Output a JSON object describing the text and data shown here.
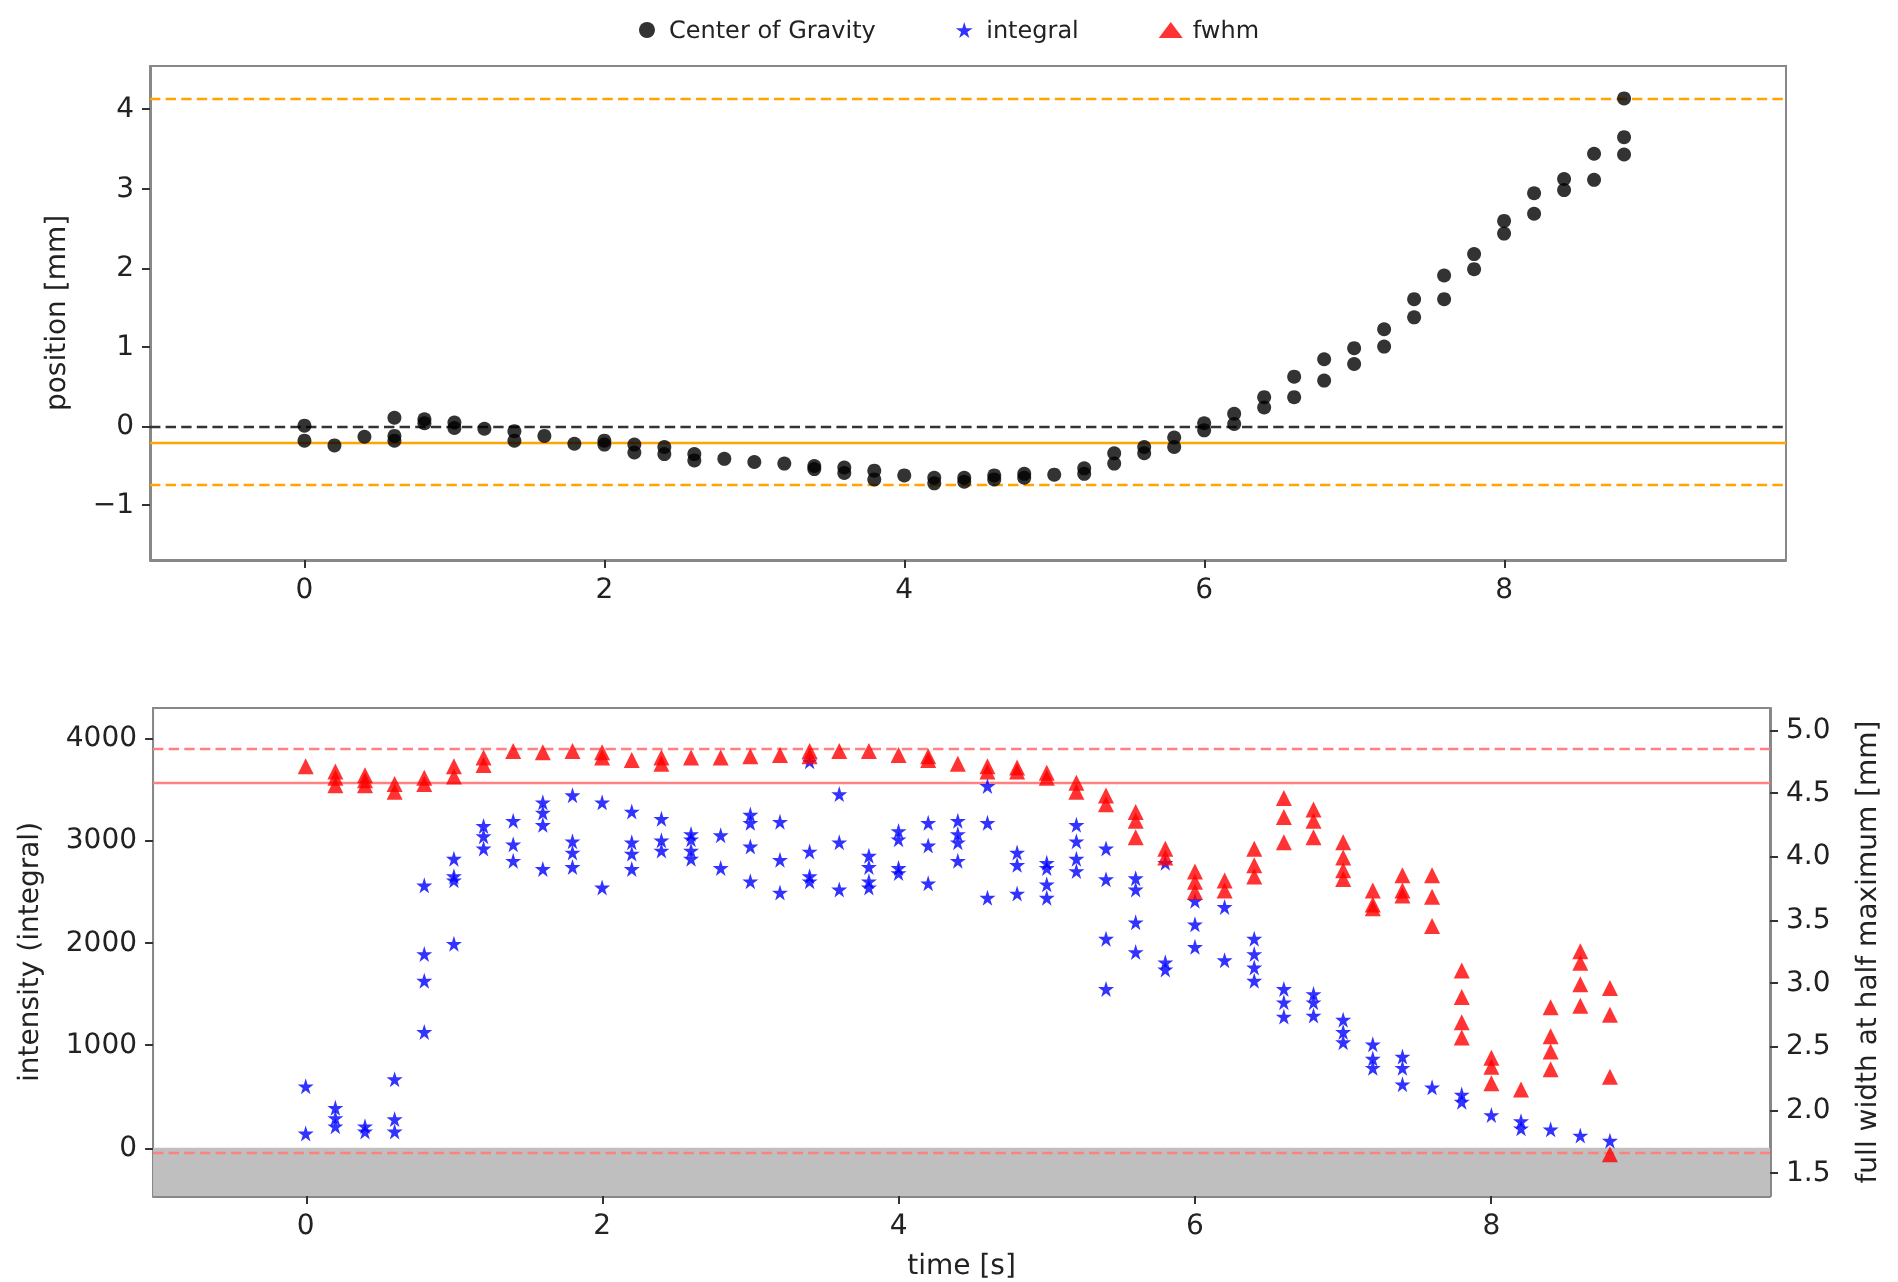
{
  "chart_data": [
    {
      "type": "scatter",
      "ylabel": "position [mm]",
      "xlim": [
        -1.03,
        9.88
      ],
      "xticks": [
        0,
        2,
        4,
        6,
        8
      ],
      "ylim": [
        -1.7,
        4.55
      ],
      "yticks": [
        {
          "value": -1,
          "label": "−1"
        },
        0,
        1,
        2,
        3,
        4
      ],
      "legend": "top",
      "series": [
        {
          "name": "Center of Gravity",
          "color": "#000000",
          "marker": "circle",
          "x": [
            0,
            0,
            0.2,
            0.4,
            0.6,
            0.6,
            0.6,
            0.8,
            0.8,
            1,
            1,
            1.2,
            1.4,
            1.4,
            1.6,
            1.8,
            2,
            2,
            2.2,
            2.2,
            2.4,
            2.4,
            2.6,
            2.6,
            2.8,
            3,
            3.2,
            3.4,
            3.4,
            3.6,
            3.6,
            3.8,
            3.8,
            4,
            4.2,
            4.2,
            4.4,
            4.4,
            4.6,
            4.6,
            4.8,
            4.8,
            5,
            5.2,
            5.2,
            5.4,
            5.4,
            5.6,
            5.6,
            5.8,
            5.8,
            6,
            6,
            6.2,
            6.2,
            6.4,
            6.4,
            6.6,
            6.6,
            6.8,
            6.8,
            7,
            7,
            7.2,
            7.2,
            7.4,
            7.4,
            7.6,
            7.6,
            7.8,
            7.8,
            8,
            8,
            8.2,
            8.2,
            8.4,
            8.4,
            8.6,
            8.6,
            8.8,
            8.8,
            8.8
          ],
          "values": [
            0,
            -0.19,
            -0.25,
            -0.14,
            0.1,
            -0.13,
            -0.19,
            0.08,
            0.03,
            0.04,
            -0.03,
            -0.04,
            -0.07,
            -0.19,
            -0.13,
            -0.23,
            -0.19,
            -0.24,
            -0.24,
            -0.34,
            -0.27,
            -0.36,
            -0.36,
            -0.44,
            -0.42,
            -0.46,
            -0.48,
            -0.51,
            -0.55,
            -0.53,
            -0.6,
            -0.57,
            -0.68,
            -0.63,
            -0.66,
            -0.73,
            -0.66,
            -0.71,
            -0.63,
            -0.68,
            -0.61,
            -0.66,
            -0.62,
            -0.54,
            -0.61,
            -0.35,
            -0.48,
            -0.27,
            -0.35,
            -0.15,
            -0.27,
            0.03,
            -0.06,
            0.15,
            0.02,
            0.36,
            0.23,
            0.62,
            0.36,
            0.84,
            0.57,
            0.98,
            0.78,
            1.22,
            1,
            1.6,
            1.37,
            1.9,
            1.6,
            2.17,
            1.98,
            2.59,
            2.43,
            2.94,
            2.68,
            3.12,
            2.98,
            3.44,
            3.11,
            4.14,
            3.65,
            3.43
          ]
        }
      ],
      "ref_lines": [
        {
          "axis": "y",
          "value": 0,
          "color": "#333333",
          "line_style": "dashed"
        },
        {
          "axis": "y",
          "value": -0.21,
          "color": "#ffa500",
          "line_style": "solid"
        },
        {
          "axis": "y",
          "value": 4.13,
          "color": "#ffa500",
          "line_style": "dashed"
        },
        {
          "axis": "y",
          "value": -0.74,
          "color": "#ffa500",
          "line_style": "dashed"
        }
      ]
    },
    {
      "type": "scatter",
      "xlabel": "time [s]",
      "ylabel": "intensity (integral)",
      "y2label": "full width at half maximum [mm]",
      "xlim": [
        -1.03,
        9.88
      ],
      "xticks": [
        0,
        2,
        4,
        6,
        8
      ],
      "ylim": [
        -470,
        4290
      ],
      "yticks": [
        0,
        1000,
        2000,
        3000,
        4000
      ],
      "y2lim": [
        1.32,
        5.17
      ],
      "y2ticks": [
        1.5,
        {
          "value": 2,
          "label": "2.0"
        },
        2.5,
        {
          "value": 3,
          "label": "3.0"
        },
        3.5,
        {
          "value": 4,
          "label": "4.0"
        },
        4.5,
        {
          "value": 5,
          "label": "5.0"
        }
      ],
      "legend": "top",
      "series": [
        {
          "name": "integral",
          "color": "#0000ff",
          "marker": "star",
          "x": [
            0,
            0,
            0.2,
            0.2,
            0.2,
            0.4,
            0.4,
            0.6,
            0.6,
            0.6,
            0.8,
            0.8,
            0.8,
            0.8,
            1,
            1,
            1,
            1,
            1.2,
            1.2,
            1.2,
            1.4,
            1.4,
            1.4,
            1.6,
            1.6,
            1.6,
            1.6,
            1.8,
            1.8,
            1.8,
            1.8,
            2,
            2,
            2.2,
            2.2,
            2.2,
            2.2,
            2.4,
            2.4,
            2.4,
            2.6,
            2.6,
            2.6,
            2.6,
            2.8,
            2.8,
            3,
            3,
            3,
            3,
            3.2,
            3.2,
            3.2,
            3.4,
            3.4,
            3.4,
            3.4,
            3.6,
            3.6,
            3.6,
            3.8,
            3.8,
            3.8,
            3.8,
            4,
            4,
            4,
            4,
            4.2,
            4.2,
            4.2,
            4.4,
            4.4,
            4.4,
            4.4,
            4.6,
            4.6,
            4.6,
            4.8,
            4.8,
            4.8,
            5,
            5,
            5,
            5,
            5.2,
            5.2,
            5.2,
            5.2,
            5.4,
            5.4,
            5.4,
            5.4,
            5.6,
            5.6,
            5.6,
            5.6,
            5.8,
            5.8,
            5.8,
            6,
            6,
            6,
            6.2,
            6.2,
            6.4,
            6.4,
            6.4,
            6.4,
            6.6,
            6.6,
            6.6,
            6.8,
            6.8,
            6.8,
            7,
            7,
            7,
            7.2,
            7.2,
            7.2,
            7.4,
            7.4,
            7.4,
            7.6,
            7.8,
            7.8,
            8,
            8.2,
            8.2,
            8.4,
            8.6,
            8.8
          ],
          "values": [
            600,
            140,
            390,
            290,
            210,
            210,
            160,
            670,
            280,
            160,
            2560,
            1890,
            1630,
            1130,
            2820,
            2650,
            2610,
            1990,
            3140,
            3040,
            2920,
            3190,
            2960,
            2800,
            3370,
            3270,
            3150,
            2720,
            3440,
            2990,
            2880,
            2740,
            3370,
            2540,
            3280,
            2980,
            2870,
            2720,
            3210,
            3000,
            2900,
            3060,
            3010,
            2900,
            2820,
            3050,
            2730,
            3250,
            3170,
            2940,
            2600,
            3180,
            2810,
            2490,
            3770,
            2890,
            2650,
            2600,
            3450,
            2980,
            2520,
            2850,
            2740,
            2600,
            2540,
            3090,
            3010,
            2730,
            2680,
            3170,
            2950,
            2580,
            3190,
            3060,
            2980,
            2800,
            3530,
            3170,
            2440,
            2880,
            2760,
            2480,
            2780,
            2730,
            2570,
            2440,
            3150,
            2990,
            2820,
            2700,
            2920,
            2620,
            2040,
            1550,
            2630,
            2520,
            2200,
            1910,
            2780,
            1810,
            1740,
            2410,
            2180,
            1960,
            2350,
            1830,
            2040,
            1890,
            1760,
            1630,
            1550,
            1420,
            1280,
            1500,
            1420,
            1290,
            1250,
            1130,
            1030,
            1010,
            870,
            780,
            890,
            780,
            620,
            590,
            520,
            450,
            320,
            260,
            190,
            180,
            120,
            70
          ]
        },
        {
          "name": "fwhm",
          "color": "#ff0000",
          "marker": "triangle",
          "axis": "y2",
          "x": [
            0,
            0.2,
            0.2,
            0.2,
            0.4,
            0.4,
            0.4,
            0.6,
            0.6,
            0.8,
            0.8,
            1,
            1,
            1.2,
            1.2,
            1.4,
            1.6,
            1.8,
            2,
            2,
            2.2,
            2.4,
            2.4,
            2.6,
            2.8,
            3,
            3.2,
            3.4,
            3.4,
            3.6,
            3.8,
            4,
            4.2,
            4.2,
            4.4,
            4.6,
            4.6,
            4.8,
            4.8,
            5,
            5,
            5.2,
            5.2,
            5.4,
            5.4,
            5.6,
            5.6,
            5.6,
            5.8,
            5.8,
            6,
            6,
            6,
            6.2,
            6.2,
            6.4,
            6.4,
            6.4,
            6.6,
            6.6,
            6.6,
            6.8,
            6.8,
            6.8,
            7,
            7,
            7,
            7,
            7.2,
            7.2,
            7.2,
            7.4,
            7.4,
            7.4,
            7.6,
            7.6,
            7.6,
            7.8,
            7.8,
            7.8,
            7.8,
            8,
            8,
            8,
            8.2,
            8.4,
            8.4,
            8.4,
            8.4,
            8.6,
            8.6,
            8.6,
            8.6,
            8.8,
            8.8,
            8.8,
            8.8
          ],
          "values": [
            4.71,
            4.67,
            4.62,
            4.56,
            4.64,
            4.6,
            4.56,
            4.57,
            4.51,
            4.62,
            4.57,
            4.71,
            4.63,
            4.78,
            4.72,
            4.83,
            4.82,
            4.83,
            4.82,
            4.78,
            4.76,
            4.78,
            4.73,
            4.78,
            4.78,
            4.79,
            4.8,
            4.83,
            4.79,
            4.83,
            4.83,
            4.8,
            4.79,
            4.76,
            4.73,
            4.71,
            4.67,
            4.7,
            4.67,
            4.66,
            4.62,
            4.58,
            4.51,
            4.48,
            4.41,
            4.35,
            4.28,
            4.15,
            4.06,
            3.99,
            3.88,
            3.8,
            3.72,
            3.81,
            3.73,
            4.06,
            3.93,
            3.84,
            4.46,
            4.31,
            4.11,
            4.37,
            4.28,
            4.15,
            4.11,
            3.99,
            3.89,
            3.82,
            3.73,
            3.62,
            3.59,
            3.85,
            3.73,
            3.69,
            3.85,
            3.68,
            3.45,
            3.1,
            2.89,
            2.69,
            2.57,
            2.41,
            2.34,
            2.21,
            2.16,
            2.81,
            2.58,
            2.46,
            2.32,
            3.25,
            3.16,
            2.99,
            2.82,
            2.96,
            2.75,
            2.26,
            1.65
          ]
        }
      ],
      "ref_lines": [
        {
          "axis": "y2",
          "value": 4.85,
          "color": "#ff8080",
          "line_style": "dashed"
        },
        {
          "axis": "y2",
          "value": 4.58,
          "color": "#ff8080",
          "line_style": "solid"
        },
        {
          "axis": "y2",
          "value": 1.66,
          "color": "#ff8080",
          "line_style": "dashed"
        }
      ],
      "bands": [
        {
          "axis": "y",
          "from": -470,
          "to": 0,
          "color": "#bfbfbf"
        }
      ]
    }
  ]
}
